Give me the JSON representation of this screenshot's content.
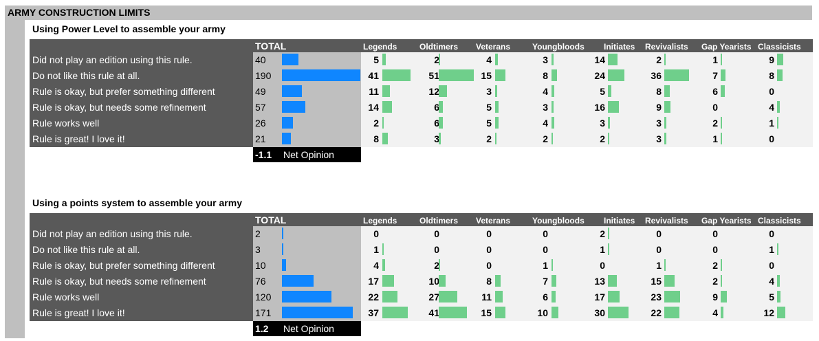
{
  "page_title": "ARMY CONSTRUCTION LIMITS",
  "colors": {
    "total_bar": "#0f86ff",
    "group_bar": "#6fcf8b"
  },
  "chart_data": [
    {
      "type": "table",
      "title": "Using Power Level to assemble your army",
      "total_header": "TOTAL",
      "groups": [
        "Legends",
        "Oldtimers",
        "Veterans",
        "Youngbloods",
        "Initiates",
        "Revivalists",
        "Gap Yearists",
        "Classicists"
      ],
      "rows": [
        {
          "label": "Did not play an edition using this rule.",
          "total": 40,
          "values": [
            5,
            2,
            4,
            3,
            14,
            2,
            1,
            9
          ]
        },
        {
          "label": "Do not like this rule at all.",
          "total": 190,
          "values": [
            41,
            51,
            15,
            8,
            24,
            36,
            7,
            8
          ]
        },
        {
          "label": "Rule is okay, but prefer something different",
          "total": 49,
          "values": [
            11,
            12,
            3,
            4,
            5,
            8,
            6,
            0
          ]
        },
        {
          "label": "Rule is okay, but needs some refinement",
          "total": 57,
          "values": [
            14,
            6,
            5,
            3,
            16,
            9,
            0,
            4
          ]
        },
        {
          "label": "Rule works well",
          "total": 26,
          "values": [
            2,
            6,
            5,
            4,
            3,
            3,
            2,
            1
          ]
        },
        {
          "label": "Rule is great! I love it!",
          "total": 21,
          "values": [
            8,
            3,
            2,
            2,
            2,
            3,
            1,
            0
          ]
        }
      ],
      "net_opinion_value": "-1.1",
      "net_opinion_label": "Net Opinion"
    },
    {
      "type": "table",
      "title": "Using a points system to assemble your army",
      "total_header": "TOTAL",
      "groups": [
        "Legends",
        "Oldtimers",
        "Veterans",
        "Youngbloods",
        "Initiates",
        "Revivalists",
        "Gap Yearists",
        "Classicists"
      ],
      "rows": [
        {
          "label": "Did not play an edition using this rule.",
          "total": 2,
          "values": [
            0,
            0,
            0,
            0,
            2,
            0,
            0,
            0
          ]
        },
        {
          "label": "Do not like this rule at all.",
          "total": 3,
          "values": [
            1,
            0,
            0,
            0,
            1,
            0,
            0,
            1
          ]
        },
        {
          "label": "Rule is okay, but prefer something different",
          "total": 10,
          "values": [
            4,
            2,
            0,
            1,
            0,
            1,
            2,
            0
          ]
        },
        {
          "label": "Rule is okay, but needs some refinement",
          "total": 76,
          "values": [
            17,
            10,
            8,
            7,
            13,
            15,
            2,
            4
          ]
        },
        {
          "label": "Rule works well",
          "total": 120,
          "values": [
            22,
            27,
            11,
            6,
            17,
            23,
            9,
            5
          ]
        },
        {
          "label": "Rule is great! I love it!",
          "total": 171,
          "values": [
            37,
            41,
            15,
            10,
            30,
            22,
            4,
            12
          ]
        }
      ],
      "net_opinion_value": "1.2",
      "net_opinion_label": "Net Opinion"
    }
  ]
}
